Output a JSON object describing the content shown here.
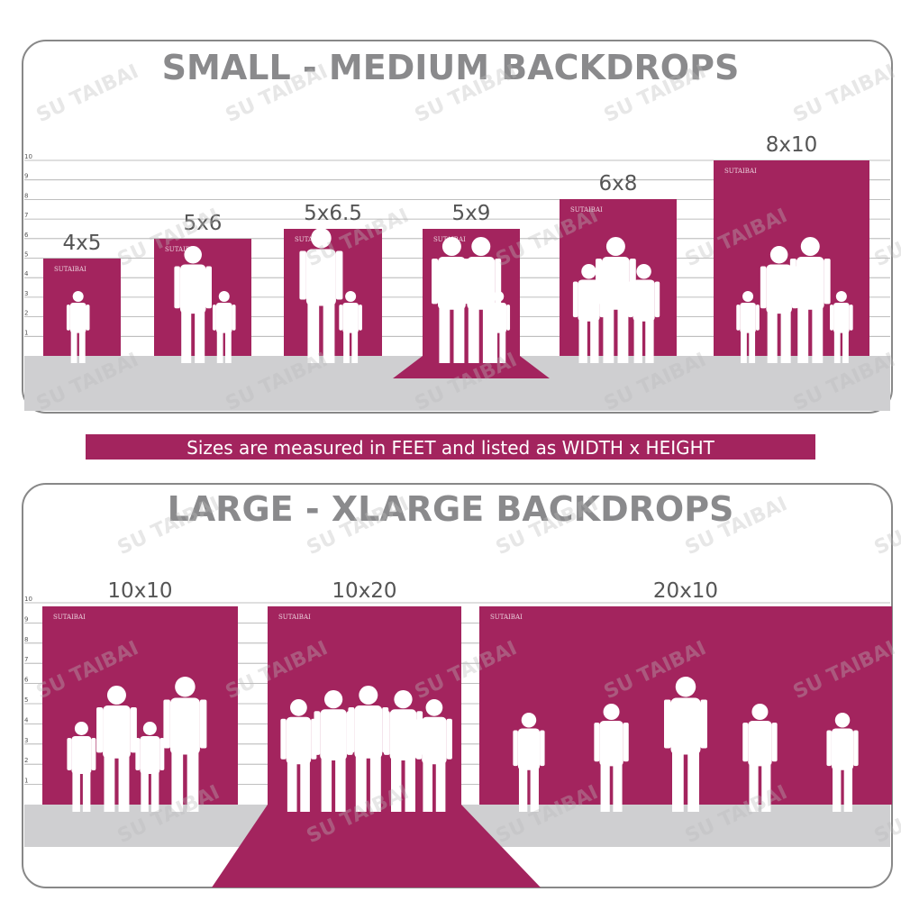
{
  "sections": [
    {
      "title": "SMALL - MEDIUM BACKDROPS",
      "backdrops": [
        "4x5",
        "5x6",
        "5x6.5",
        "5x9",
        "6x8",
        "8x10"
      ]
    },
    {
      "title": "LARGE - XLARGE BACKDROPS",
      "backdrops": [
        "10x10",
        "10x20",
        "20x10"
      ]
    }
  ],
  "ruler_labels": [
    "1",
    "2",
    "3",
    "4",
    "5",
    "6",
    "7",
    "8",
    "9",
    "10"
  ],
  "note": "Sizes are measured in FEET and listed as WIDTH x HEIGHT",
  "watermark": "SU TAIBAI",
  "small_watermark": "SUTAIBAI"
}
